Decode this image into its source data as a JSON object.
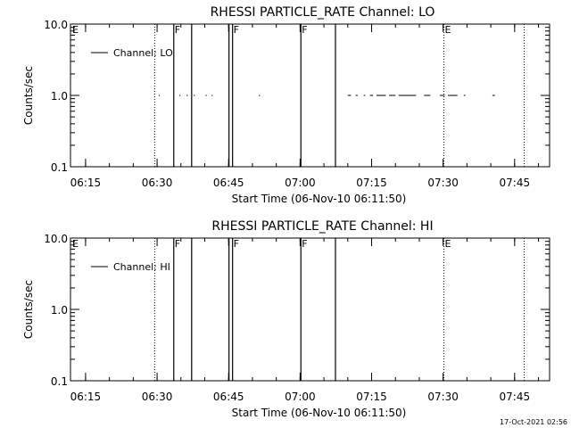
{
  "footer": {
    "timestamp": "17-Oct-2021 02:56"
  },
  "chart_data": [
    {
      "type": "line",
      "title": "RHESSI PARTICLE_RATE Channel: LO",
      "xlabel": "Start Time (06-Nov-10 06:11:50)",
      "ylabel": "Counts/sec",
      "y_scale": "log",
      "ylim": [
        0.1,
        10.0
      ],
      "xlim": [
        "06:11:50",
        "07:52:20"
      ],
      "x_ticks": [
        "06:15",
        "06:30",
        "06:45",
        "07:00",
        "07:15",
        "07:30",
        "07:45"
      ],
      "y_ticks": [
        "0.1",
        "1.0",
        "10.0"
      ],
      "grid": false,
      "legend": {
        "position": "top-left",
        "entries": [
          "Channel: LO"
        ]
      },
      "series": [
        {
          "name": "Channel: LO",
          "segments": [
            {
              "x": [
                "06:30:20",
                "06:30:35"
              ],
              "y": [
                1.0,
                1.0
              ]
            },
            {
              "x": [
                "06:34:40",
                "06:34:55"
              ],
              "y": [
                1.0,
                1.0
              ]
            },
            {
              "x": [
                "06:36:10",
                "06:36:25"
              ],
              "y": [
                1.0,
                1.0
              ]
            },
            {
              "x": [
                "06:37:40",
                "06:37:55"
              ],
              "y": [
                1.0,
                1.0
              ]
            },
            {
              "x": [
                "06:40:10",
                "06:40:25"
              ],
              "y": [
                1.0,
                1.0
              ]
            },
            {
              "x": [
                "06:41:25",
                "06:41:40"
              ],
              "y": [
                1.0,
                1.0
              ]
            },
            {
              "x": [
                "06:51:20",
                "06:51:35"
              ],
              "y": [
                1.0,
                1.0
              ]
            },
            {
              "x": [
                "07:10:00",
                "07:10:40"
              ],
              "y": [
                1.0,
                1.0
              ]
            },
            {
              "x": [
                "07:11:40",
                "07:12:05"
              ],
              "y": [
                1.0,
                1.0
              ]
            },
            {
              "x": [
                "07:13:20",
                "07:13:40"
              ],
              "y": [
                1.0,
                1.0
              ]
            },
            {
              "x": [
                "07:14:40",
                "07:15:20"
              ],
              "y": [
                1.0,
                1.0
              ]
            },
            {
              "x": [
                "07:16:00",
                "07:18:00"
              ],
              "y": [
                1.0,
                1.0
              ]
            },
            {
              "x": [
                "07:18:40",
                "07:20:00"
              ],
              "y": [
                1.0,
                1.0
              ]
            },
            {
              "x": [
                "07:20:40",
                "07:24:20"
              ],
              "y": [
                1.0,
                1.0
              ]
            },
            {
              "x": [
                "07:26:00",
                "07:27:20"
              ],
              "y": [
                1.0,
                1.0
              ]
            },
            {
              "x": [
                "07:29:20",
                "07:30:20"
              ],
              "y": [
                1.0,
                1.0
              ]
            },
            {
              "x": [
                "07:31:00",
                "07:33:00"
              ],
              "y": [
                1.0,
                1.0
              ]
            },
            {
              "x": [
                "07:34:20",
                "07:34:40"
              ],
              "y": [
                1.0,
                1.0
              ]
            },
            {
              "x": [
                "07:40:20",
                "07:40:50"
              ],
              "y": [
                1.0,
                1.0
              ]
            }
          ]
        }
      ],
      "event_markers": [
        {
          "label": "E",
          "time": "06:11:50",
          "style": "dotted"
        },
        {
          "label": "",
          "time": "06:29:30",
          "style": "dotted"
        },
        {
          "label": "F",
          "time": "06:33:30",
          "style": "solid"
        },
        {
          "label": "",
          "time": "06:37:15",
          "style": "solid"
        },
        {
          "label": "",
          "time": "06:45:05",
          "style": "solid"
        },
        {
          "label": "F",
          "time": "06:45:50",
          "style": "solid"
        },
        {
          "label": "F",
          "time": "07:00:10",
          "style": "solid"
        },
        {
          "label": "",
          "time": "07:07:25",
          "style": "solid"
        },
        {
          "label": "E",
          "time": "07:30:10",
          "style": "dotted"
        },
        {
          "label": "",
          "time": "07:47:00",
          "style": "dotted"
        }
      ]
    },
    {
      "type": "line",
      "title": "RHESSI PARTICLE_RATE Channel: HI",
      "xlabel": "Start Time (06-Nov-10 06:11:50)",
      "ylabel": "Counts/sec",
      "y_scale": "log",
      "ylim": [
        0.1,
        10.0
      ],
      "xlim": [
        "06:11:50",
        "07:52:20"
      ],
      "x_ticks": [
        "06:15",
        "06:30",
        "06:45",
        "07:00",
        "07:15",
        "07:30",
        "07:45"
      ],
      "y_ticks": [
        "0.1",
        "1.0",
        "10.0"
      ],
      "grid": false,
      "legend": {
        "position": "top-left",
        "entries": [
          "Channel: HI"
        ]
      },
      "series": [
        {
          "name": "Channel: HI",
          "segments": []
        }
      ],
      "event_markers": [
        {
          "label": "E",
          "time": "06:11:50",
          "style": "dotted"
        },
        {
          "label": "",
          "time": "06:29:30",
          "style": "dotted"
        },
        {
          "label": "F",
          "time": "06:33:30",
          "style": "solid"
        },
        {
          "label": "",
          "time": "06:37:15",
          "style": "solid"
        },
        {
          "label": "",
          "time": "06:45:05",
          "style": "solid"
        },
        {
          "label": "F",
          "time": "06:45:50",
          "style": "solid"
        },
        {
          "label": "F",
          "time": "07:00:10",
          "style": "solid"
        },
        {
          "label": "",
          "time": "07:07:25",
          "style": "solid"
        },
        {
          "label": "E",
          "time": "07:30:10",
          "style": "dotted"
        },
        {
          "label": "",
          "time": "07:47:00",
          "style": "dotted"
        }
      ]
    }
  ]
}
